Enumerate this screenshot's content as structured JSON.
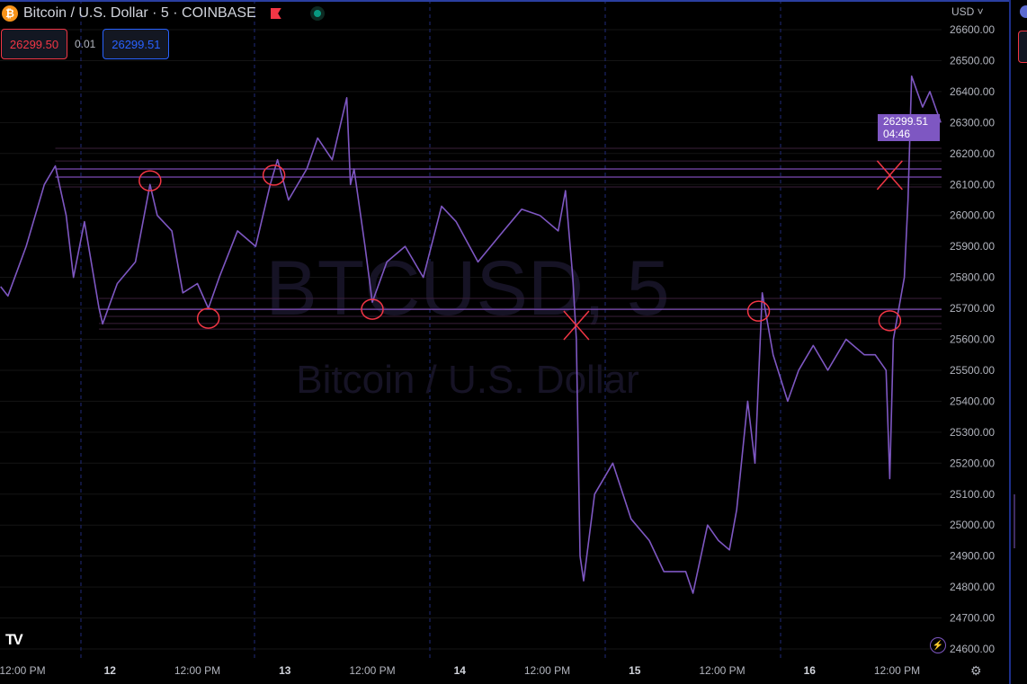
{
  "header": {
    "symbol_title": "Bitcoin / U.S. Dollar · 5 · COINBASE",
    "sell_price": "26299.50",
    "spread": "0.01",
    "buy_price": "26299.51",
    "currency": "USD",
    "icons": [
      "bitcoin-icon",
      "flag-icon",
      "market-open-icon"
    ]
  },
  "watermark": {
    "symbol": "BTCUSD, 5",
    "name": "Bitcoin / U.S. Dollar"
  },
  "price_tag": {
    "price": "26299.51",
    "countdown": "04:46"
  },
  "colors": {
    "series": "#7e57c2",
    "annotation": "#f23645",
    "sell": "#f23645",
    "buy": "#2962ff",
    "background": "#000000"
  },
  "chart_data": {
    "type": "line",
    "grid": true,
    "ylim": [
      24600,
      26600
    ],
    "y_ticks": [
      "26600.00",
      "26500.00",
      "26400.00",
      "26300.00",
      "26200.00",
      "26100.00",
      "26000.00",
      "25900.00",
      "25800.00",
      "25700.00",
      "25600.00",
      "25500.00",
      "25400.00",
      "25300.00",
      "25200.00",
      "25100.00",
      "25000.00",
      "24900.00",
      "24800.00",
      "24700.00",
      "24600.00"
    ],
    "x_ticks": [
      {
        "label": "12:00 PM",
        "t": "09-11 12:00"
      },
      {
        "label": "12",
        "t": "09-12 00:00"
      },
      {
        "label": "12:00 PM",
        "t": "09-12 12:00"
      },
      {
        "label": "13",
        "t": "09-13 00:00"
      },
      {
        "label": "12:00 PM",
        "t": "09-13 12:00"
      },
      {
        "label": "14",
        "t": "09-14 00:00"
      },
      {
        "label": "12:00 PM",
        "t": "09-14 12:00"
      },
      {
        "label": "15",
        "t": "09-15 00:00"
      },
      {
        "label": "12:00 PM",
        "t": "09-15 12:00"
      },
      {
        "label": "16",
        "t": "09-16 00:00"
      },
      {
        "label": "12:00 PM",
        "t": "09-16 12:00"
      }
    ],
    "series": [
      {
        "points": [
          [
            "09-11 09:00",
            25770
          ],
          [
            "09-11 10:00",
            25740
          ],
          [
            "09-11 12:30",
            25900
          ],
          [
            "09-11 15:00",
            26100
          ],
          [
            "09-11 16:30",
            26160
          ],
          [
            "09-11 18:00",
            26000
          ],
          [
            "09-11 19:00",
            25800
          ],
          [
            "09-11 20:30",
            25980
          ],
          [
            "09-11 22:30",
            25700
          ],
          [
            "09-11 23:00",
            25650
          ],
          [
            "09-12 01:00",
            25780
          ],
          [
            "09-12 03:30",
            25850
          ],
          [
            "09-12 05:30",
            26100
          ],
          [
            "09-12 06:30",
            26000
          ],
          [
            "09-12 08:30",
            25950
          ],
          [
            "09-12 10:00",
            25750
          ],
          [
            "09-12 12:00",
            25780
          ],
          [
            "09-12 13:30",
            25700
          ],
          [
            "09-12 15:00",
            25800
          ],
          [
            "09-12 17:30",
            25950
          ],
          [
            "09-12 20:00",
            25900
          ],
          [
            "09-12 22:00",
            26100
          ],
          [
            "09-12 23:00",
            26180
          ],
          [
            "09-13 00:30",
            26050
          ],
          [
            "09-13 03:00",
            26150
          ],
          [
            "09-13 04:30",
            26250
          ],
          [
            "09-13 06:30",
            26180
          ],
          [
            "09-13 08:30",
            26380
          ],
          [
            "09-13 09:00",
            26100
          ],
          [
            "09-13 09:30",
            26150
          ],
          [
            "09-13 11:00",
            25900
          ],
          [
            "09-13 12:00",
            25720
          ],
          [
            "09-13 14:00",
            25850
          ],
          [
            "09-13 16:30",
            25900
          ],
          [
            "09-13 19:00",
            25800
          ],
          [
            "09-13 21:30",
            26030
          ],
          [
            "09-13 23:30",
            25980
          ],
          [
            "09-14 02:30",
            25850
          ],
          [
            "09-14 06:00",
            25950
          ],
          [
            "09-14 08:30",
            26020
          ],
          [
            "09-14 11:00",
            26000
          ],
          [
            "09-14 13:30",
            25950
          ],
          [
            "09-14 14:30",
            26080
          ],
          [
            "09-14 15:30",
            25800
          ],
          [
            "09-14 16:00",
            25600
          ],
          [
            "09-14 16:30",
            24900
          ],
          [
            "09-14 17:00",
            24820
          ],
          [
            "09-14 18:30",
            25100
          ],
          [
            "09-14 21:00",
            25200
          ],
          [
            "09-14 23:30",
            25020
          ],
          [
            "09-15 02:00",
            24950
          ],
          [
            "09-15 04:00",
            24850
          ],
          [
            "09-15 07:00",
            24850
          ],
          [
            "09-15 08:00",
            24780
          ],
          [
            "09-15 10:00",
            25000
          ],
          [
            "09-15 11:30",
            24950
          ],
          [
            "09-15 13:00",
            24920
          ],
          [
            "09-15 14:00",
            25050
          ],
          [
            "09-15 15:30",
            25400
          ],
          [
            "09-15 16:30",
            25200
          ],
          [
            "09-15 17:30",
            25750
          ],
          [
            "09-15 19:00",
            25550
          ],
          [
            "09-15 21:00",
            25400
          ],
          [
            "09-15 22:30",
            25500
          ],
          [
            "09-16 00:30",
            25580
          ],
          [
            "09-16 02:30",
            25500
          ],
          [
            "09-16 05:00",
            25600
          ],
          [
            "09-16 07:30",
            25550
          ],
          [
            "09-16 09:00",
            25550
          ],
          [
            "09-16 10:30",
            25500
          ],
          [
            "09-16 11:00",
            25150
          ],
          [
            "09-16 11:30",
            25600
          ],
          [
            "09-16 13:00",
            25800
          ],
          [
            "09-16 13:30",
            26050
          ],
          [
            "09-16 14:00",
            26450
          ],
          [
            "09-16 15:30",
            26350
          ],
          [
            "09-16 16:30",
            26400
          ],
          [
            "09-16 18:00",
            26300
          ]
        ]
      }
    ],
    "horizontal_lines": [
      {
        "price": 26217,
        "from": "09-11 16:30",
        "strong": false
      },
      {
        "price": 26176,
        "from": "09-11 16:30",
        "strong": false
      },
      {
        "price": 26150,
        "from": "09-11 16:30",
        "strong": true
      },
      {
        "price": 26124,
        "from": "09-11 16:30",
        "strong": true
      },
      {
        "price": 26092,
        "from": "09-11 16:30",
        "strong": false
      },
      {
        "price": 25732,
        "from": "09-11 22:30",
        "strong": false
      },
      {
        "price": 25697,
        "from": "09-11 22:30",
        "strong": true
      },
      {
        "price": 25674,
        "from": "09-11 22:30",
        "strong": false
      },
      {
        "price": 25651,
        "from": "09-11 22:30",
        "strong": false
      },
      {
        "price": 25633,
        "from": "09-11 22:30",
        "strong": false
      }
    ],
    "annotations": [
      {
        "type": "circle",
        "t": "09-12 05:30",
        "price": 26112
      },
      {
        "type": "circle",
        "t": "09-12 13:30",
        "price": 25668
      },
      {
        "type": "circle",
        "t": "09-12 22:30",
        "price": 26130
      },
      {
        "type": "circle",
        "t": "09-13 12:00",
        "price": 25697
      },
      {
        "type": "circle",
        "t": "09-15 17:00",
        "price": 25691
      },
      {
        "type": "circle",
        "t": "09-16 11:00",
        "price": 25660
      },
      {
        "type": "cross",
        "t": "09-14 16:00",
        "price": 25645
      },
      {
        "type": "cross",
        "t": "09-16 11:00",
        "price": 26130
      }
    ]
  }
}
